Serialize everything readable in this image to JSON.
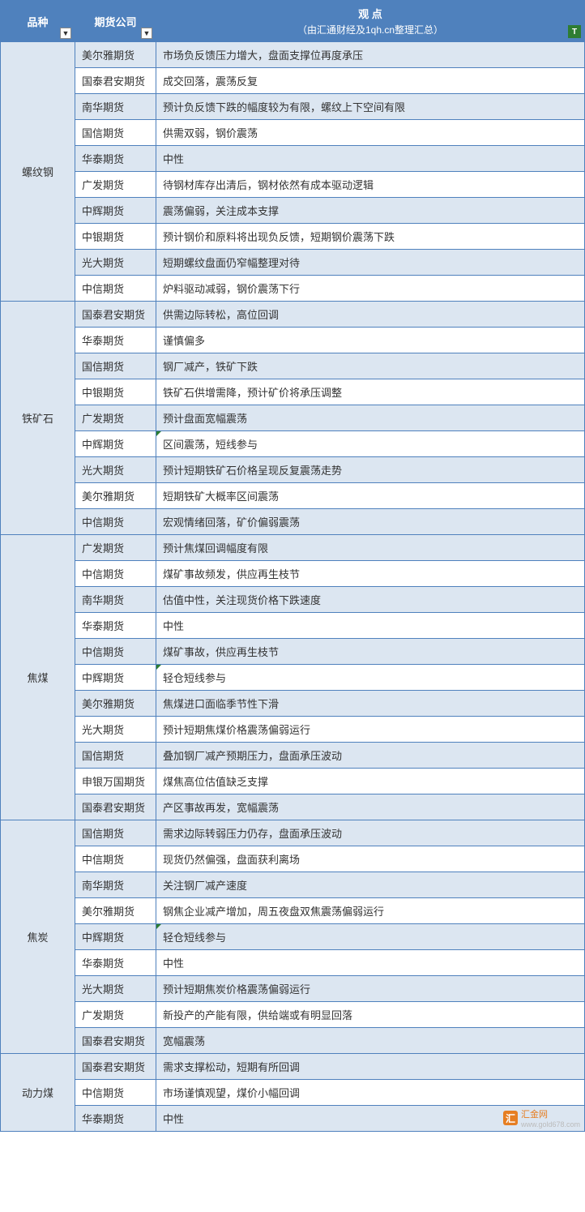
{
  "header": {
    "col_category": "品种",
    "col_firm": "期货公司",
    "col_opinion": "观    点",
    "col_opinion_sub": "（由汇通财经及1qh.cn整理汇总）"
  },
  "logo": {
    "text": "汇金网",
    "sub": "www.gold678.com",
    "mark": "汇"
  },
  "groups": [
    {
      "category": "螺纹钢",
      "rows": [
        {
          "firm": "美尔雅期货",
          "opinion": "市场负反馈压力增大，盘面支撑位再度承压"
        },
        {
          "firm": "国泰君安期货",
          "opinion": "成交回落，震荡反复"
        },
        {
          "firm": "南华期货",
          "opinion": "预计负反馈下跌的幅度较为有限，螺纹上下空间有限"
        },
        {
          "firm": "国信期货",
          "opinion": "供需双弱，钢价震荡"
        },
        {
          "firm": "华泰期货",
          "opinion": "中性"
        },
        {
          "firm": "广发期货",
          "opinion": "待钢材库存出清后，钢材依然有成本驱动逻辑"
        },
        {
          "firm": "中辉期货",
          "opinion": "震荡偏弱，关注成本支撑"
        },
        {
          "firm": "中银期货",
          "opinion": "预计钢价和原料将出现负反馈，短期钢价震荡下跌"
        },
        {
          "firm": "光大期货",
          "opinion": "短期螺纹盘面仍窄幅整理对待"
        },
        {
          "firm": "中信期货",
          "opinion": "炉料驱动减弱，钢价震荡下行"
        }
      ]
    },
    {
      "category": "铁矿石",
      "rows": [
        {
          "firm": "国泰君安期货",
          "opinion": "供需边际转松，高位回调"
        },
        {
          "firm": "华泰期货",
          "opinion": "谨慎偏多"
        },
        {
          "firm": "国信期货",
          "opinion": "钢厂减产，铁矿下跌"
        },
        {
          "firm": "中银期货",
          "opinion": "铁矿石供增需降，预计矿价将承压调整"
        },
        {
          "firm": "广发期货",
          "opinion": "预计盘面宽幅震荡"
        },
        {
          "firm": "中辉期货",
          "opinion": "区间震荡，短线参与",
          "tick": true
        },
        {
          "firm": "光大期货",
          "opinion": "预计短期铁矿石价格呈现反复震荡走势"
        },
        {
          "firm": "美尔雅期货",
          "opinion": "短期铁矿大概率区间震荡"
        },
        {
          "firm": "中信期货",
          "opinion": "宏观情绪回落，矿价偏弱震荡"
        }
      ]
    },
    {
      "category": "焦煤",
      "rows": [
        {
          "firm": "广发期货",
          "opinion": "预计焦煤回调幅度有限"
        },
        {
          "firm": "中信期货",
          "opinion": "煤矿事故频发，供应再生枝节"
        },
        {
          "firm": "南华期货",
          "opinion": "估值中性，关注现货价格下跌速度"
        },
        {
          "firm": "华泰期货",
          "opinion": "中性"
        },
        {
          "firm": "中信期货",
          "opinion": "煤矿事故，供应再生枝节"
        },
        {
          "firm": "中辉期货",
          "opinion": "轻仓短线参与",
          "tick": true
        },
        {
          "firm": "美尔雅期货",
          "opinion": "焦煤进口面临季节性下滑"
        },
        {
          "firm": "光大期货",
          "opinion": "预计短期焦煤价格震荡偏弱运行"
        },
        {
          "firm": "国信期货",
          "opinion": "叠加钢厂减产预期压力，盘面承压波动"
        },
        {
          "firm": "申银万国期货",
          "opinion": "煤焦高位估值缺乏支撑"
        },
        {
          "firm": "国泰君安期货",
          "opinion": "产区事故再发，宽幅震荡"
        }
      ]
    },
    {
      "category": "焦炭",
      "rows": [
        {
          "firm": "国信期货",
          "opinion": "需求边际转弱压力仍存，盘面承压波动"
        },
        {
          "firm": "中信期货",
          "opinion": "现货仍然偏强，盘面获利离场"
        },
        {
          "firm": "南华期货",
          "opinion": "关注钢厂减产速度"
        },
        {
          "firm": "美尔雅期货",
          "opinion": "钢焦企业减产增加，周五夜盘双焦震荡偏弱运行"
        },
        {
          "firm": "中辉期货",
          "opinion": "轻仓短线参与",
          "tick": true
        },
        {
          "firm": "华泰期货",
          "opinion": "中性"
        },
        {
          "firm": "光大期货",
          "opinion": "预计短期焦炭价格震荡偏弱运行"
        },
        {
          "firm": "广发期货",
          "opinion": "新投产的产能有限，供给端或有明显回落"
        },
        {
          "firm": "国泰君安期货",
          "opinion": "宽幅震荡"
        }
      ]
    },
    {
      "category": "动力煤",
      "rows": [
        {
          "firm": "国泰君安期货",
          "opinion": "需求支撑松动，短期有所回调"
        },
        {
          "firm": "中信期货",
          "opinion": "市场谨慎观望，煤价小幅回调"
        },
        {
          "firm": "华泰期货",
          "opinion": "中性"
        }
      ]
    }
  ]
}
